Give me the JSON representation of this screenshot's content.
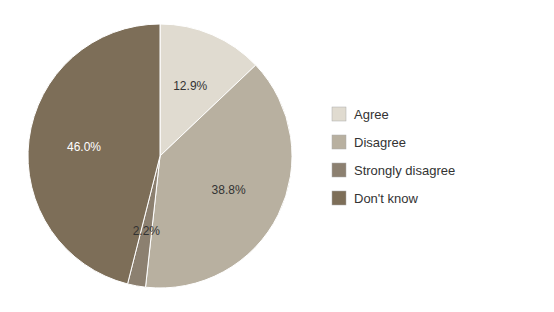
{
  "chart_data": {
    "type": "pie",
    "categories": [
      "Agree",
      "Disagree",
      "Strongly disagree",
      "Don't know"
    ],
    "values": [
      12.9,
      38.8,
      2.2,
      46.0
    ],
    "value_labels": [
      "12.9%",
      "38.8%",
      "2.2%",
      "46.0%"
    ],
    "colors": [
      "#e0dbd0",
      "#b8b0a0",
      "#8c8070",
      "#7d6e58"
    ],
    "data_labels": true,
    "legend": "right"
  }
}
